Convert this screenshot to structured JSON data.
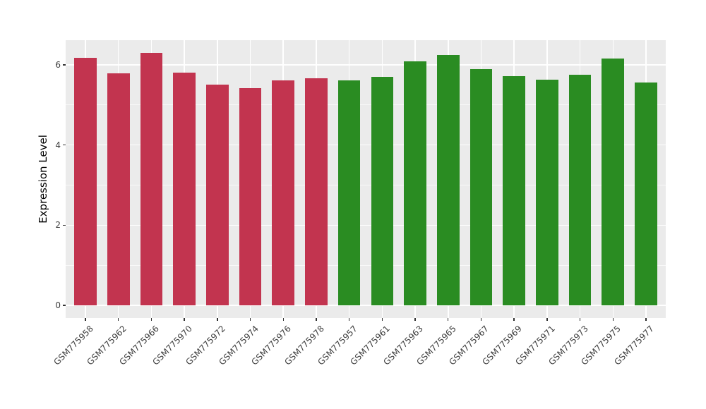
{
  "chart_data": {
    "type": "bar",
    "title": "",
    "xlabel": "",
    "ylabel": "Expression Level",
    "ylim": [
      0,
      6.6
    ],
    "yticks": [
      0,
      2,
      4,
      6
    ],
    "yticks_minor": [
      1,
      3,
      5
    ],
    "grid": "on",
    "legend": "none",
    "colors": {
      "panel_background": "#EBEBEB",
      "figure_background": "#FFFFFF",
      "gridline": "#FFFFFF",
      "axis_text": "#404040",
      "tick_mark": "#333333",
      "group_red": "#C2344F",
      "group_green": "#2A8C22"
    },
    "groups": [
      {
        "name": "red-group",
        "color": "#C2344F"
      },
      {
        "name": "green-group",
        "color": "#2A8C22"
      }
    ],
    "categories": [
      "GSM775958",
      "GSM775962",
      "GSM775966",
      "GSM775970",
      "GSM775972",
      "GSM775974",
      "GSM775976",
      "GSM775978",
      "GSM775957",
      "GSM775961",
      "GSM775963",
      "GSM775965",
      "GSM775967",
      "GSM775969",
      "GSM775971",
      "GSM775973",
      "GSM775975",
      "GSM775977"
    ],
    "values": [
      6.18,
      5.78,
      6.3,
      5.8,
      5.5,
      5.42,
      5.61,
      5.66,
      5.61,
      5.7,
      6.09,
      6.24,
      5.89,
      5.72,
      5.63,
      5.76,
      6.16,
      5.56
    ],
    "bar_groups": [
      0,
      0,
      0,
      0,
      0,
      0,
      0,
      0,
      1,
      1,
      1,
      1,
      1,
      1,
      1,
      1,
      1,
      1
    ]
  }
}
